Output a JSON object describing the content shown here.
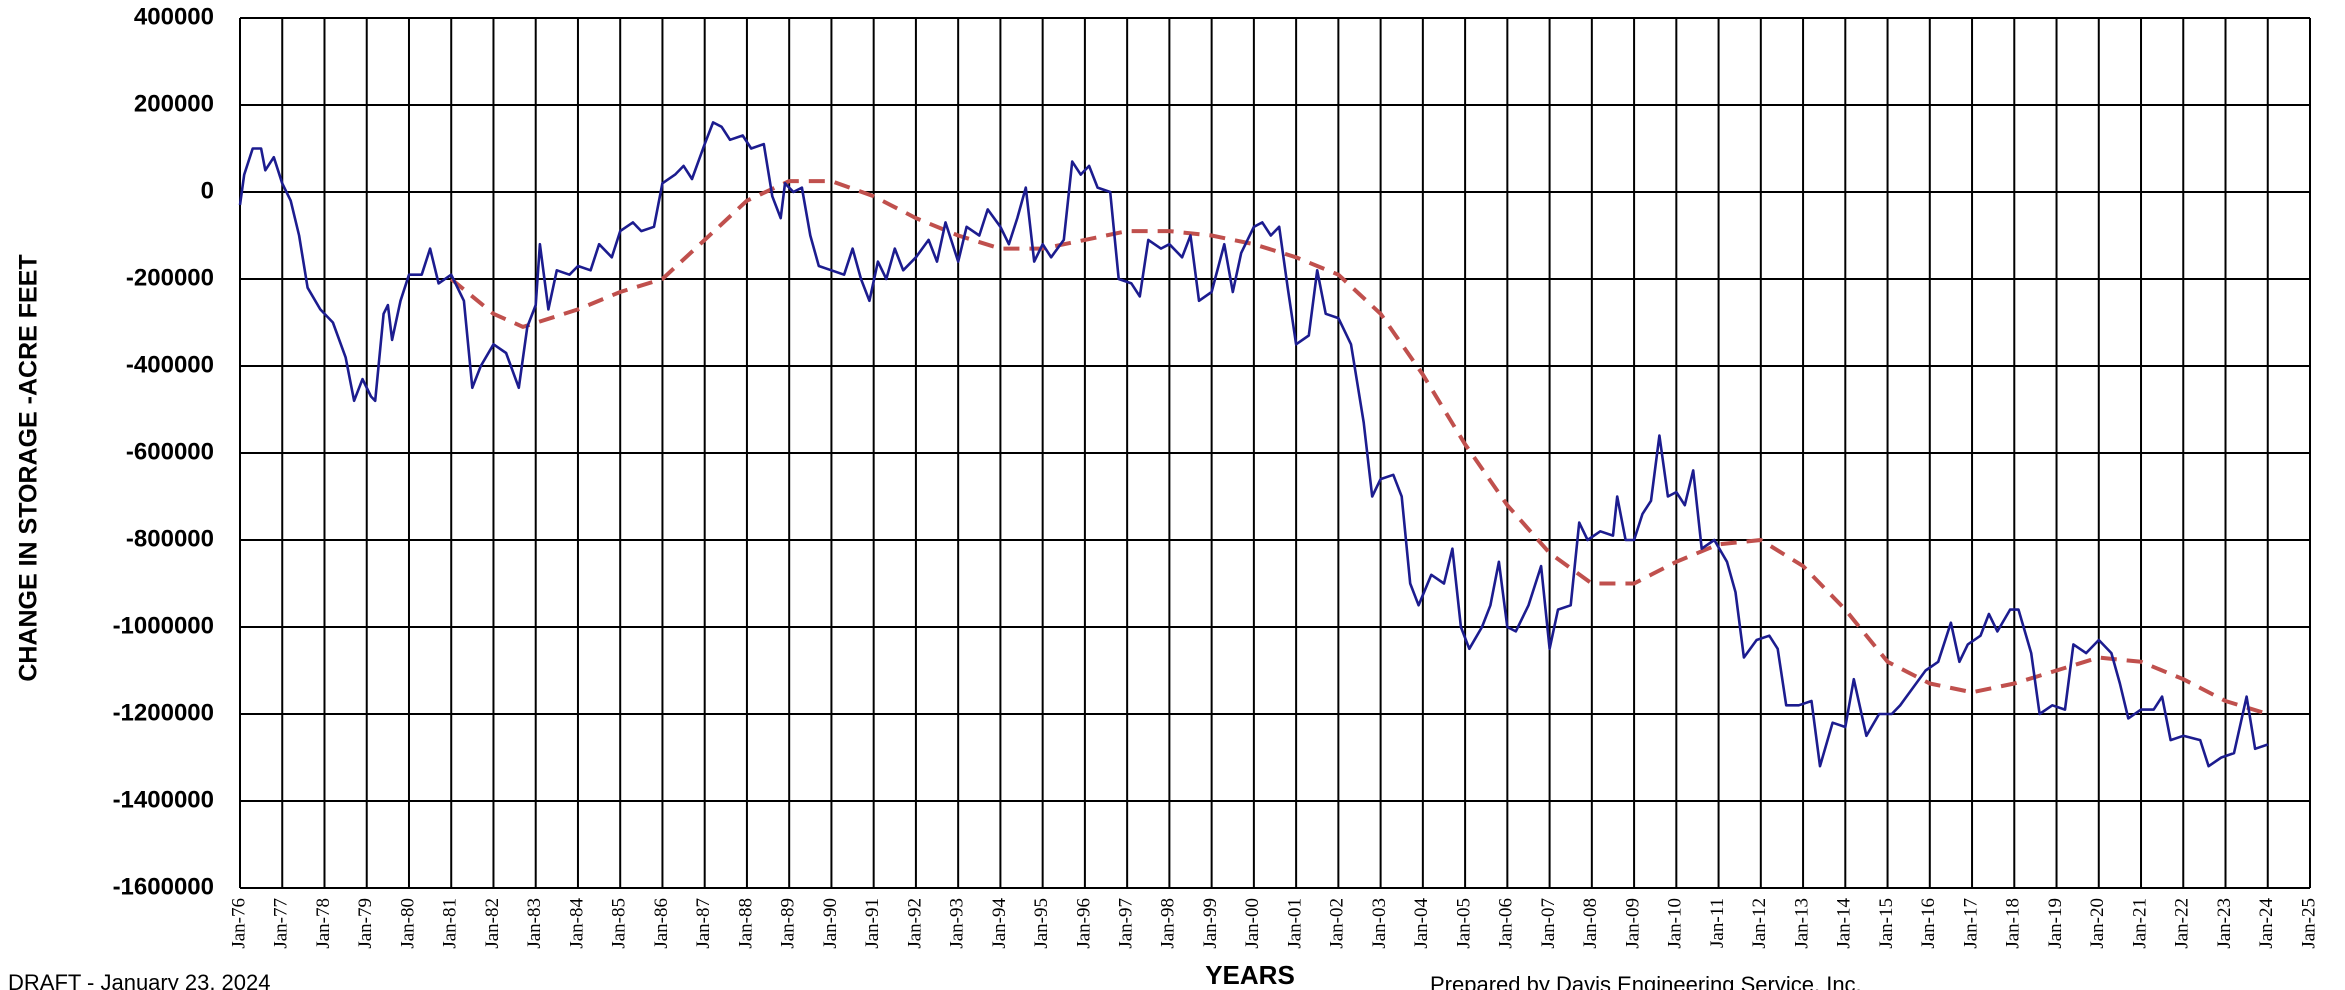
{
  "chart_data": {
    "type": "line",
    "ylabel": "CHANGE IN STORAGE -ACRE FEET",
    "xlabel": "YEARS",
    "annotations": [
      "DRAFT - January 23, 2024",
      "Prepared by Davis Engineering Service, Inc."
    ],
    "xlim": [
      1976,
      2025
    ],
    "xticks": [
      {
        "value": 1976,
        "label": "Jan-76"
      },
      {
        "value": 1977,
        "label": "Jan-77"
      },
      {
        "value": 1978,
        "label": "Jan-78"
      },
      {
        "value": 1979,
        "label": "Jan-79"
      },
      {
        "value": 1980,
        "label": "Jan-80"
      },
      {
        "value": 1981,
        "label": "Jan-81"
      },
      {
        "value": 1982,
        "label": "Jan-82"
      },
      {
        "value": 1983,
        "label": "Jan-83"
      },
      {
        "value": 1984,
        "label": "Jan-84"
      },
      {
        "value": 1985,
        "label": "Jan-85"
      },
      {
        "value": 1986,
        "label": "Jan-86"
      },
      {
        "value": 1987,
        "label": "Jan-87"
      },
      {
        "value": 1988,
        "label": "Jan-88"
      },
      {
        "value": 1989,
        "label": "Jan-89"
      },
      {
        "value": 1990,
        "label": "Jan-90"
      },
      {
        "value": 1991,
        "label": "Jan-91"
      },
      {
        "value": 1992,
        "label": "Jan-92"
      },
      {
        "value": 1993,
        "label": "Jan-93"
      },
      {
        "value": 1994,
        "label": "Jan-94"
      },
      {
        "value": 1995,
        "label": "Jan-95"
      },
      {
        "value": 1996,
        "label": "Jan-96"
      },
      {
        "value": 1997,
        "label": "Jan-97"
      },
      {
        "value": 1998,
        "label": "Jan-98"
      },
      {
        "value": 1999,
        "label": "Jan-99"
      },
      {
        "value": 2000,
        "label": "Jan-00"
      },
      {
        "value": 2001,
        "label": "Jan-01"
      },
      {
        "value": 2002,
        "label": "Jan-02"
      },
      {
        "value": 2003,
        "label": "Jan-03"
      },
      {
        "value": 2004,
        "label": "Jan-04"
      },
      {
        "value": 2005,
        "label": "Jan-05"
      },
      {
        "value": 2006,
        "label": "Jan-06"
      },
      {
        "value": 2007,
        "label": "Jan-07"
      },
      {
        "value": 2008,
        "label": "Jan-08"
      },
      {
        "value": 2009,
        "label": "Jan-09"
      },
      {
        "value": 2010,
        "label": "Jan-10"
      },
      {
        "value": 2011,
        "label": "Jan-11"
      },
      {
        "value": 2012,
        "label": "Jan-12"
      },
      {
        "value": 2013,
        "label": "Jan-13"
      },
      {
        "value": 2014,
        "label": "Jan-14"
      },
      {
        "value": 2015,
        "label": "Jan-15"
      },
      {
        "value": 2016,
        "label": "Jan-16"
      },
      {
        "value": 2017,
        "label": "Jan-17"
      },
      {
        "value": 2018,
        "label": "Jan-18"
      },
      {
        "value": 2019,
        "label": "Jan-19"
      },
      {
        "value": 2020,
        "label": "Jan-20"
      },
      {
        "value": 2021,
        "label": "Jan-21"
      },
      {
        "value": 2022,
        "label": "Jan-22"
      },
      {
        "value": 2023,
        "label": "Jan-23"
      },
      {
        "value": 2024,
        "label": "Jan-24"
      },
      {
        "value": 2025,
        "label": "Jan-25"
      }
    ],
    "ylim": [
      -1600000,
      400000
    ],
    "yticks": [
      400000,
      200000,
      0,
      -200000,
      -400000,
      -600000,
      -800000,
      -1000000,
      -1200000,
      -1400000,
      -1600000
    ],
    "grid": true,
    "series": [
      {
        "color": "#1c1c8f",
        "dashed": false,
        "x": [
          1976,
          1976.1,
          1976.3,
          1976.5,
          1976.6,
          1976.8,
          1977,
          1977.2,
          1977.4,
          1977.6,
          1977.9,
          1978.2,
          1978.5,
          1978.7,
          1978.9,
          1979.1,
          1979.2,
          1979.4,
          1979.5,
          1979.6,
          1979.8,
          1980,
          1980.3,
          1980.5,
          1980.7,
          1981,
          1981.3,
          1981.5,
          1981.7,
          1982,
          1982.3,
          1982.6,
          1982.8,
          1983,
          1983.1,
          1983.3,
          1983.5,
          1983.8,
          1984,
          1984.3,
          1984.5,
          1984.8,
          1985,
          1985.3,
          1985.5,
          1985.8,
          1986,
          1986.3,
          1986.5,
          1986.7,
          1987,
          1987.2,
          1987.4,
          1987.6,
          1987.9,
          1988.1,
          1988.4,
          1988.6,
          1988.8,
          1988.9,
          1989.1,
          1989.3,
          1989.5,
          1989.7,
          1990,
          1990.3,
          1990.5,
          1990.7,
          1990.9,
          1991.1,
          1991.3,
          1991.5,
          1991.7,
          1992,
          1992.3,
          1992.5,
          1992.7,
          1993,
          1993.2,
          1993.5,
          1993.7,
          1994,
          1994.2,
          1994.4,
          1994.6,
          1994.8,
          1995,
          1995.2,
          1995.5,
          1995.7,
          1995.9,
          1996.1,
          1996.3,
          1996.6,
          1996.8,
          1997.1,
          1997.3,
          1997.5,
          1997.8,
          1998,
          1998.3,
          1998.5,
          1998.7,
          1999,
          1999.3,
          1999.5,
          1999.7,
          2000,
          2000.2,
          2000.4,
          2000.6,
          2000.8,
          2001,
          2001.3,
          2001.5,
          2001.7,
          2002,
          2002.3,
          2002.6,
          2002.8,
          2003,
          2003.3,
          2003.5,
          2003.7,
          2003.9,
          2004.2,
          2004.5,
          2004.7,
          2004.9,
          2005.1,
          2005.4,
          2005.6,
          2005.8,
          2006,
          2006.2,
          2006.5,
          2006.8,
          2007,
          2007.2,
          2007.5,
          2007.7,
          2007.9,
          2008.2,
          2008.5,
          2008.6,
          2008.8,
          2009,
          2009.2,
          2009.4,
          2009.6,
          2009.8,
          2010,
          2010.2,
          2010.4,
          2010.6,
          2010.9,
          2011.2,
          2011.4,
          2011.6,
          2011.9,
          2012.2,
          2012.4,
          2012.6,
          2012.9,
          2013.2,
          2013.4,
          2013.7,
          2014,
          2014.2,
          2014.5,
          2014.8,
          2015.1,
          2015.3,
          2015.6,
          2015.9,
          2016.2,
          2016.5,
          2016.7,
          2016.9,
          2017.2,
          2017.4,
          2017.6,
          2017.9,
          2018.1,
          2018.4,
          2018.6,
          2018.9,
          2019.2,
          2019.4,
          2019.7,
          2020,
          2020.3,
          2020.5,
          2020.7,
          2021,
          2021.3,
          2021.5,
          2021.7,
          2022,
          2022.4,
          2022.6,
          2022.9,
          2023.2,
          2023.5,
          2023.7,
          2024
        ],
        "values": [
          -30000,
          40000,
          100000,
          100000,
          50000,
          80000,
          20000,
          -20000,
          -100000,
          -220000,
          -270000,
          -300000,
          -380000,
          -480000,
          -430000,
          -470000,
          -480000,
          -280000,
          -260000,
          -340000,
          -250000,
          -190000,
          -190000,
          -130000,
          -210000,
          -190000,
          -250000,
          -450000,
          -400000,
          -350000,
          -370000,
          -450000,
          -310000,
          -260000,
          -120000,
          -270000,
          -180000,
          -190000,
          -170000,
          -180000,
          -120000,
          -150000,
          -90000,
          -70000,
          -90000,
          -80000,
          20000,
          40000,
          60000,
          30000,
          110000,
          160000,
          150000,
          120000,
          130000,
          100000,
          110000,
          -10000,
          -60000,
          20000,
          0,
          10000,
          -100000,
          -170000,
          -180000,
          -190000,
          -130000,
          -200000,
          -250000,
          -160000,
          -200000,
          -130000,
          -180000,
          -150000,
          -110000,
          -160000,
          -70000,
          -160000,
          -80000,
          -100000,
          -40000,
          -80000,
          -120000,
          -60000,
          10000,
          -160000,
          -120000,
          -150000,
          -110000,
          70000,
          40000,
          60000,
          10000,
          0,
          -200000,
          -210000,
          -240000,
          -110000,
          -130000,
          -120000,
          -150000,
          -100000,
          -250000,
          -230000,
          -120000,
          -230000,
          -140000,
          -80000,
          -70000,
          -100000,
          -80000,
          -220000,
          -350000,
          -330000,
          -180000,
          -280000,
          -290000,
          -350000,
          -530000,
          -700000,
          -660000,
          -650000,
          -700000,
          -900000,
          -950000,
          -880000,
          -900000,
          -820000,
          -1000000,
          -1050000,
          -1000000,
          -950000,
          -850000,
          -1000000,
          -1010000,
          -950000,
          -860000,
          -1050000,
          -960000,
          -950000,
          -760000,
          -800000,
          -780000,
          -790000,
          -700000,
          -800000,
          -800000,
          -740000,
          -710000,
          -560000,
          -700000,
          -690000,
          -720000,
          -640000,
          -820000,
          -800000,
          -850000,
          -920000,
          -1070000,
          -1030000,
          -1020000,
          -1050000,
          -1180000,
          -1180000,
          -1170000,
          -1320000,
          -1220000,
          -1230000,
          -1120000,
          -1250000,
          -1200000,
          -1200000,
          -1180000,
          -1140000,
          -1100000,
          -1080000,
          -990000,
          -1080000,
          -1040000,
          -1020000,
          -970000,
          -1010000,
          -960000,
          -960000,
          -1060000,
          -1200000,
          -1180000,
          -1190000,
          -1040000,
          -1060000,
          -1030000,
          -1060000,
          -1130000,
          -1210000,
          -1190000,
          -1190000,
          -1160000,
          -1260000,
          -1250000,
          -1260000,
          -1320000,
          -1300000,
          -1290000,
          -1160000,
          -1280000,
          -1270000
        ]
      },
      {
        "color": "#c0504d",
        "dashed": true,
        "x": [
          1981,
          1982,
          1982.7,
          1984,
          1985,
          1986,
          1987,
          1988,
          1989,
          1990,
          1991,
          1992,
          1993,
          1994,
          1995,
          1996,
          1997,
          1998,
          1999,
          2000,
          2001,
          2002,
          2003,
          2004,
          2005,
          2006,
          2007,
          2008,
          2009,
          2010,
          2011,
          2012,
          2013,
          2014,
          2015,
          2016,
          2017,
          2018,
          2019,
          2020,
          2021,
          2022,
          2023,
          2024
        ],
        "values": [
          -200000,
          -280000,
          -310000,
          -270000,
          -230000,
          -200000,
          -110000,
          -20000,
          25000,
          25000,
          -10000,
          -60000,
          -100000,
          -130000,
          -130000,
          -110000,
          -90000,
          -90000,
          -100000,
          -120000,
          -150000,
          -190000,
          -280000,
          -420000,
          -580000,
          -720000,
          -830000,
          -900000,
          -900000,
          -850000,
          -810000,
          -800000,
          -860000,
          -960000,
          -1080000,
          -1130000,
          -1150000,
          -1130000,
          -1100000,
          -1070000,
          -1080000,
          -1120000,
          -1170000,
          -1200000
        ]
      }
    ]
  }
}
